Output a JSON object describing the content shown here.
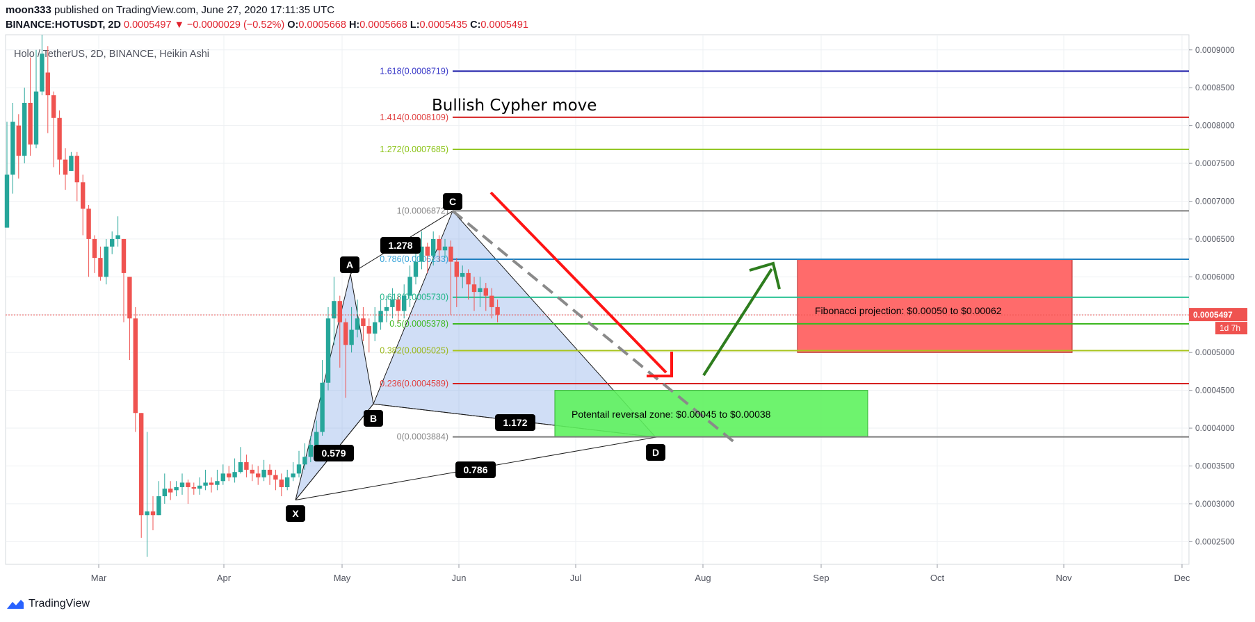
{
  "header": {
    "author": "moon333",
    "published": "published on TradingView.com, June 27, 2020 17:11:35 UTC",
    "symbol": "BINANCE:HOTUSDT, 2D",
    "last": "0.0005497",
    "change_arrow": "▼",
    "change": "−0.0000029 (−0.52%)",
    "o_label": "O:",
    "o": "0.0005668",
    "h_label": "H:",
    "h": "0.0005668",
    "l_label": "L:",
    "l": "0.0005435",
    "c_label": "C:",
    "c": "0.0005491"
  },
  "footer": {
    "brand": "TradingView",
    "logo_icon": "tradingview-logo-icon"
  },
  "colors": {
    "up": "#26a69a",
    "down": "#ef5350",
    "accent_red": "#e0222d"
  },
  "chart_data": {
    "type": "candlestick",
    "title": "Holo / TetherUS, 2D, BINANCE, Heikin Ashi",
    "ylim": [
      0.00022,
      0.00092
    ],
    "y_ticks": [
      "0.0002500",
      "0.0003000",
      "0.0003500",
      "0.0004000",
      "0.0004500",
      "0.0005000",
      "0.0005500",
      "0.0006000",
      "0.0006500",
      "0.0007000",
      "0.0007500",
      "0.0008000",
      "0.0008500",
      "0.0009000"
    ],
    "x_ticks": [
      "Mar",
      "Apr",
      "May",
      "Jun",
      "Jul",
      "Aug",
      "Sep",
      "Oct",
      "Nov",
      "Dec"
    ],
    "grid": true,
    "last_price_label": "0.0005497",
    "countdown_label": "1d 7h",
    "candles": [
      [
        0.000665,
        0.000735,
        0.000805,
        0.000665
      ],
      [
        0.000735,
        0.000805,
        0.00083,
        0.00071
      ],
      [
        0.0008,
        0.00076,
        0.000815,
        0.00073
      ],
      [
        0.00076,
        0.00083,
        0.00085,
        0.00075
      ],
      [
        0.00083,
        0.000775,
        0.00089,
        0.00076
      ],
      [
        0.000775,
        0.000845,
        0.0009,
        0.00077
      ],
      [
        0.000845,
        0.000895,
        0.00092,
        0.00084
      ],
      [
        0.00087,
        0.00084,
        0.000905,
        0.00079
      ],
      [
        0.00084,
        0.00081,
        0.000845,
        0.000745
      ],
      [
        0.00081,
        0.000755,
        0.00082,
        0.000735
      ],
      [
        0.000755,
        0.000735,
        0.00077,
        0.000715
      ],
      [
        0.00074,
        0.00076,
        0.000765,
        0.00074
      ],
      [
        0.00076,
        0.000725,
        0.000765,
        0.0007
      ],
      [
        0.000725,
        0.00069,
        0.000735,
        0.000655
      ],
      [
        0.00069,
        0.00065,
        0.000695,
        0.0006
      ],
      [
        0.00065,
        0.000625,
        0.000655,
        0.000605
      ],
      [
        0.000625,
        0.0006,
        0.00064,
        0.000595
      ],
      [
        0.0006,
        0.00064,
        0.00065,
        0.00059
      ],
      [
        0.00064,
        0.00065,
        0.00066,
        0.00063
      ],
      [
        0.00065,
        0.000655,
        0.00068,
        0.00064
      ],
      [
        0.00065,
        0.000605,
        0.00065,
        0.00054
      ],
      [
        0.0006,
        0.000545,
        0.0006,
        0.00049
      ],
      [
        0.000545,
        0.00042,
        0.00056,
        0.000395
      ],
      [
        0.00042,
        0.000285,
        0.00042,
        0.000255
      ],
      [
        0.000285,
        0.00029,
        0.000395,
        0.00023
      ],
      [
        0.00029,
        0.000285,
        0.00031,
        0.000265
      ],
      [
        0.000285,
        0.00031,
        0.00033,
        0.000285
      ],
      [
        0.00031,
        0.00032,
        0.00034,
        0.0003
      ],
      [
        0.00032,
        0.000315,
        0.00033,
        0.000305
      ],
      [
        0.000318,
        0.000322,
        0.00033,
        0.00031
      ],
      [
        0.000322,
        0.000328,
        0.00034,
        0.000312
      ],
      [
        0.000328,
        0.000322,
        0.000332,
        0.0003
      ],
      [
        0.000322,
        0.00032,
        0.000328,
        0.000312
      ],
      [
        0.00032,
        0.000324,
        0.000335,
        0.000312
      ],
      [
        0.000324,
        0.000328,
        0.000345,
        0.000318
      ],
      [
        0.000328,
        0.000325,
        0.000335,
        0.000315
      ],
      [
        0.000325,
        0.00033,
        0.000345,
        0.000318
      ],
      [
        0.00033,
        0.00034,
        0.000352,
        0.000325
      ],
      [
        0.00034,
        0.000335,
        0.00035,
        0.00033
      ],
      [
        0.000335,
        0.000342,
        0.00036,
        0.000328
      ],
      [
        0.000342,
        0.000355,
        0.000375,
        0.00034
      ],
      [
        0.000355,
        0.000345,
        0.000365,
        0.000335
      ],
      [
        0.000345,
        0.00034,
        0.000352,
        0.00033
      ],
      [
        0.00034,
        0.000335,
        0.00035,
        0.000325
      ],
      [
        0.000335,
        0.000345,
        0.000358,
        0.00033
      ],
      [
        0.000345,
        0.000338,
        0.000352,
        0.000325
      ],
      [
        0.000338,
        0.000332,
        0.000345,
        0.000318
      ],
      [
        0.000332,
        0.000322,
        0.00034,
        0.00031
      ],
      [
        0.000322,
        0.000335,
        0.000345,
        0.000318
      ],
      [
        0.000335,
        0.00034,
        0.000355,
        0.00033
      ],
      [
        0.00034,
        0.000352,
        0.00037,
        0.000335
      ],
      [
        0.000352,
        0.000362,
        0.00038,
        0.000345
      ],
      [
        0.000362,
        0.000378,
        0.00039,
        0.000355
      ],
      [
        0.000378,
        0.000395,
        0.00041,
        0.00037
      ],
      [
        0.000395,
        0.00046,
        0.00049,
        0.00039
      ],
      [
        0.00046,
        0.000545,
        0.00056,
        0.00045
      ],
      [
        0.000545,
        0.000568,
        0.0006,
        0.00051
      ],
      [
        0.000568,
        0.00054,
        0.000575,
        0.00048
      ],
      [
        0.00054,
        0.00051,
        0.000545,
        0.00044
      ],
      [
        0.00051,
        0.00053,
        0.00056,
        0.0005
      ],
      [
        0.00053,
        0.000545,
        0.00057,
        0.00052
      ],
      [
        0.000545,
        0.000535,
        0.00056,
        0.000515
      ],
      [
        0.000535,
        0.000525,
        0.000545,
        0.0005
      ],
      [
        0.000525,
        0.00054,
        0.00056,
        0.000515
      ],
      [
        0.00054,
        0.000555,
        0.00057,
        0.00053
      ],
      [
        0.000555,
        0.00056,
        0.000575,
        0.00054
      ],
      [
        0.00056,
        0.00057,
        0.000585,
        0.000545
      ],
      [
        0.00057,
        0.000555,
        0.000575,
        0.00054
      ],
      [
        0.000555,
        0.000575,
        0.00059,
        0.000545
      ],
      [
        0.000575,
        0.0006,
        0.000615,
        0.00056
      ],
      [
        0.0006,
        0.00062,
        0.00065,
        0.00059
      ],
      [
        0.00062,
        0.00064,
        0.00066,
        0.00061
      ],
      [
        0.00064,
        0.000628,
        0.000645,
        0.000605
      ],
      [
        0.000628,
        0.00065,
        0.00066,
        0.000615
      ],
      [
        0.00065,
        0.000635,
        0.000655,
        0.00062
      ],
      [
        0.000635,
        0.00064,
        0.00065,
        0.000625
      ],
      [
        0.00064,
        0.00062,
        0.000648,
        0.00055
      ],
      [
        0.00062,
        0.0006,
        0.000625,
        0.00056
      ],
      [
        0.0006,
        0.000605,
        0.000615,
        0.000585
      ],
      [
        0.000605,
        0.00059,
        0.00061,
        0.00057
      ],
      [
        0.00059,
        0.00058,
        0.0006,
        0.000555
      ],
      [
        0.00058,
        0.000585,
        0.0006,
        0.00056
      ],
      [
        0.000585,
        0.000575,
        0.000592,
        0.000555
      ],
      [
        0.000575,
        0.00056,
        0.000585,
        0.000545
      ],
      [
        0.00056,
        0.00055,
        0.00057,
        0.00054
      ]
    ],
    "fib_levels": [
      {
        "label": "1.618(0.0008719)",
        "price": 0.0008719,
        "color": "#1a1aa8",
        "text_color": "#3838c8"
      },
      {
        "label": "1.414(0.0008109)",
        "price": 0.0008109,
        "color": "#d31515",
        "text_color": "#e04040"
      },
      {
        "label": "1.272(0.0007685)",
        "price": 0.0007685,
        "color": "#8bc316",
        "text_color": "#8bc316"
      },
      {
        "label": "1(0.0006872)",
        "price": 0.0006872,
        "color": "#7d7d7d",
        "text_color": "#888888"
      },
      {
        "label": "0.786(0.0006233)",
        "price": 0.0006233,
        "color": "#1f7fc0",
        "text_color": "#36a2d8"
      },
      {
        "label": "0.618(0.0005730)",
        "price": 0.000573,
        "color": "#1fbf8f",
        "text_color": "#22b58a"
      },
      {
        "label": "0.5(0.0005378)",
        "price": 0.0005378,
        "color": "#3cb81f",
        "text_color": "#3cb81f"
      },
      {
        "label": "0.382(0.0005025)",
        "price": 0.0005025,
        "color": "#a8c41c",
        "text_color": "#9bb81c"
      },
      {
        "label": "0.236(0.0004589)",
        "price": 0.0004589,
        "color": "#d61f1f",
        "text_color": "#e04040"
      },
      {
        "label": "0(0.0003884)",
        "price": 0.0003884,
        "color": "#7d7d7d",
        "text_color": "#888888"
      }
    ],
    "pattern_points": [
      {
        "name": "X",
        "price": 0.000305
      },
      {
        "name": "A",
        "price": 0.000604
      },
      {
        "name": "B",
        "price": 0.000432
      },
      {
        "name": "C",
        "price": 0.000687
      },
      {
        "name": "D",
        "price": 0.000388
      }
    ],
    "ratio_labels": [
      "1.278",
      "0.579",
      "1.172",
      "0.786"
    ],
    "annotations": {
      "heading": "Bullish Cypher move",
      "fib_projection": "Fibonacci projection: $0.00050 to $0.00062",
      "reversal_zone": "Potentail reversal zone: $0.00045 to $0.00038"
    }
  }
}
